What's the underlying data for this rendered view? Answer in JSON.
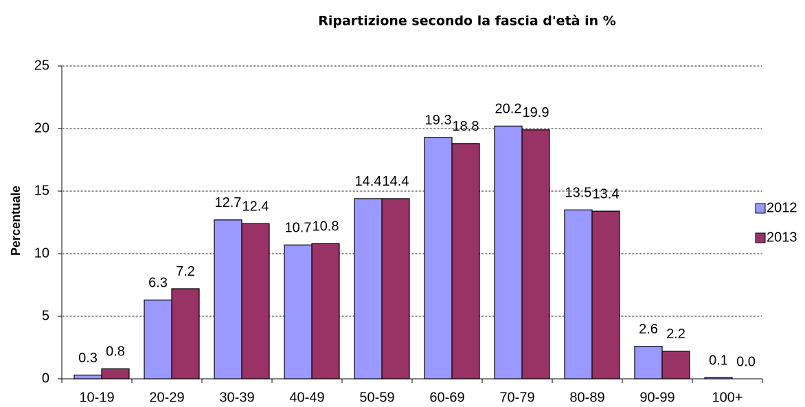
{
  "chart_data": {
    "type": "bar",
    "title": "Ripartizione secondo la fascia d'età in %",
    "y_label": "Percentuale",
    "categories": [
      "10-19",
      "20-29",
      "30-39",
      "40-49",
      "50-59",
      "60-69",
      "70-79",
      "80-89",
      "90-99",
      "100+"
    ],
    "series": [
      {
        "name": "2012",
        "color": "#9999ff",
        "values": [
          0.3,
          6.3,
          12.7,
          10.7,
          14.4,
          19.3,
          20.2,
          13.5,
          2.6,
          0.1
        ],
        "value_labels": [
          "0.3",
          "6.3",
          "12.7",
          "10.7",
          "14.4",
          "19.3",
          "20.2",
          "13.5",
          "2.6",
          "0.1"
        ]
      },
      {
        "name": "2013",
        "color": "#993366",
        "values": [
          0.8,
          7.2,
          12.4,
          10.8,
          14.4,
          18.8,
          19.9,
          13.4,
          2.2,
          0.0
        ],
        "value_labels": [
          "0.8",
          "7.2",
          "12.4",
          "10.8",
          "14.4",
          "18.8",
          "19.9",
          "13.4",
          "2.2",
          "0.0"
        ]
      }
    ],
    "ylim": [
      0,
      25
    ],
    "yticks": [
      0,
      5,
      10,
      15,
      20,
      25
    ],
    "grid": true,
    "legend": "right"
  }
}
